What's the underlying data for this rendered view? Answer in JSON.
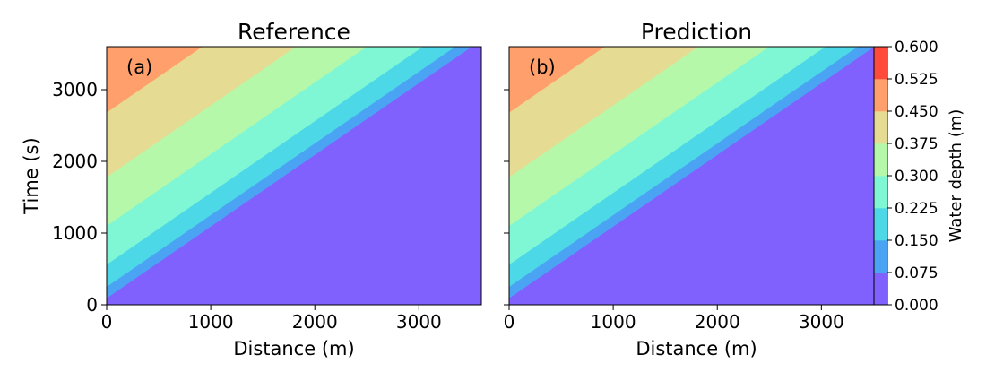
{
  "chart_data": [
    {
      "type": "heatmap",
      "subtype": "filled-contour",
      "title": "Reference",
      "panel_label": "(a)",
      "xlabel": "Distance (m)",
      "ylabel": "Time (s)",
      "xlim": [
        0,
        3600
      ],
      "ylim": [
        0,
        3600
      ],
      "xticks": [
        "0",
        "1000",
        "2000",
        "3000"
      ],
      "yticks": [
        "0",
        "1000",
        "2000",
        "3000"
      ],
      "contour_levels": [
        0.0,
        0.075,
        0.15,
        0.225,
        0.3,
        0.375,
        0.45,
        0.525,
        0.6
      ],
      "contour_boundaries": [
        {
          "level": 0.075,
          "t_at_x0": 90
        },
        {
          "level": 0.15,
          "t_at_x0": 250
        },
        {
          "level": 0.225,
          "t_at_x0": 560
        },
        {
          "level": 0.3,
          "t_at_x0": 1100
        },
        {
          "level": 0.375,
          "t_at_x0": 1780
        },
        {
          "level": 0.45,
          "t_at_x0": 2680
        }
      ],
      "grid": false
    },
    {
      "type": "heatmap",
      "subtype": "filled-contour",
      "title": "Prediction",
      "panel_label": "(b)",
      "xlabel": "Distance (m)",
      "ylabel": "",
      "xlim": [
        0,
        3600
      ],
      "ylim": [
        0,
        3600
      ],
      "xticks": [
        "0",
        "1000",
        "2000",
        "3000"
      ],
      "yticks": [],
      "contour_levels": [
        0.0,
        0.075,
        0.15,
        0.225,
        0.3,
        0.375,
        0.45,
        0.525,
        0.6
      ],
      "contour_boundaries": [
        {
          "level": 0.075,
          "t_at_x0": 90
        },
        {
          "level": 0.15,
          "t_at_x0": 250
        },
        {
          "level": 0.225,
          "t_at_x0": 560
        },
        {
          "level": 0.3,
          "t_at_x0": 1100
        },
        {
          "level": 0.375,
          "t_at_x0": 1780
        },
        {
          "level": 0.45,
          "t_at_x0": 2680
        }
      ],
      "grid": false
    }
  ],
  "colorbar": {
    "label": "Water depth (m)",
    "ticks": [
      "0.000",
      "0.075",
      "0.150",
      "0.225",
      "0.300",
      "0.375",
      "0.450",
      "0.525",
      "0.600"
    ],
    "colors": [
      "#8061fe",
      "#4ba3f4",
      "#4cd8e6",
      "#7ff7d4",
      "#b6f8a9",
      "#e6db92",
      "#ffa06c",
      "#ff4a3c"
    ]
  }
}
